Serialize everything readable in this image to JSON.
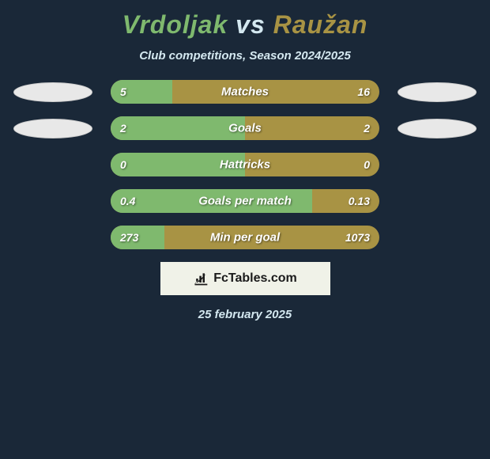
{
  "header": {
    "player1": "Vrdoljak",
    "vs": "vs",
    "player2": "Raužan",
    "subtitle": "Club competitions, Season 2024/2025"
  },
  "colors": {
    "player1": "#7fb96e",
    "player2": "#a89344",
    "background": "#1a2838",
    "text": "#d4e8f0",
    "badge_bg": "#e8e8e8"
  },
  "stats": [
    {
      "label": "Matches",
      "left_value": "5",
      "right_value": "16",
      "left_pct": 23,
      "show_badge_left": true,
      "show_badge_right": true
    },
    {
      "label": "Goals",
      "left_value": "2",
      "right_value": "2",
      "left_pct": 50,
      "show_badge_left": true,
      "show_badge_right": true
    },
    {
      "label": "Hattricks",
      "left_value": "0",
      "right_value": "0",
      "left_pct": 50,
      "show_badge_left": false,
      "show_badge_right": false
    },
    {
      "label": "Goals per match",
      "left_value": "0.4",
      "right_value": "0.13",
      "left_pct": 75,
      "show_badge_left": false,
      "show_badge_right": false
    },
    {
      "label": "Min per goal",
      "left_value": "273",
      "right_value": "1073",
      "left_pct": 20,
      "show_badge_left": false,
      "show_badge_right": false
    }
  ],
  "footer": {
    "domain": "FcTables.com",
    "date": "25 february 2025"
  }
}
